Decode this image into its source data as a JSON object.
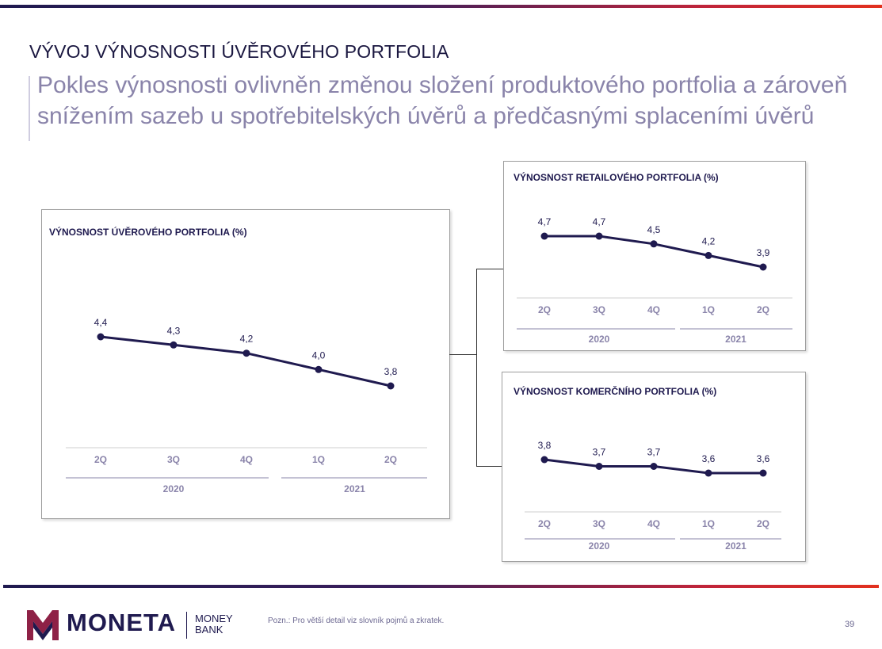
{
  "slide": {
    "title": "VÝVOJ VÝNOSNOSTI ÚVĚROVÉHO PORTFOLIA",
    "subtitle": "Pokles výnosnosti ovlivněn změnou složení produktového portfolia a zároveň  snížením sazeb u spotřebitelských úvěrů a předčasnými splaceními úvěrů",
    "note": "Pozn.: Pro větší detail viz slovník pojmů a zkratek.",
    "page_number": "39"
  },
  "brand": {
    "name": "MONETA",
    "sub_line1": "MONEY",
    "sub_line2": "BANK",
    "colors": {
      "navy": "#1f1a4f",
      "red": "#e2301e",
      "purple": "#8a84aa"
    }
  },
  "chart_data": [
    {
      "id": "total",
      "type": "line",
      "title": "VÝNOSNOST ÚVĚROVÉHO PORTFOLIA (%)",
      "categories": [
        "2Q",
        "3Q",
        "4Q",
        "1Q",
        "2Q"
      ],
      "groups": [
        {
          "label": "2020",
          "span": [
            0,
            2
          ]
        },
        {
          "label": "2021",
          "span": [
            3,
            4
          ]
        }
      ],
      "series": [
        {
          "values": [
            4.4,
            4.3,
            4.2,
            4.0,
            3.8
          ]
        }
      ],
      "data_labels": [
        "4,4",
        "4,3",
        "4,2",
        "4,0",
        "3,8"
      ],
      "ylim": [
        2.5,
        5.0
      ],
      "grid": false,
      "color": "#1f1a4f"
    },
    {
      "id": "retail",
      "type": "line",
      "title": "VÝNOSNOST RETAILOVÉHO PORTFOLIA (%)",
      "categories": [
        "2Q",
        "3Q",
        "4Q",
        "1Q",
        "2Q"
      ],
      "groups": [
        {
          "label": "2020",
          "span": [
            0,
            2
          ]
        },
        {
          "label": "2021",
          "span": [
            3,
            4
          ]
        }
      ],
      "series": [
        {
          "values": [
            4.7,
            4.7,
            4.5,
            4.2,
            3.9
          ]
        }
      ],
      "data_labels": [
        "4,7",
        "4,7",
        "4,5",
        "4,2",
        "3,9"
      ],
      "ylim": [
        3.6,
        4.8
      ],
      "grid": false,
      "color": "#1f1a4f"
    },
    {
      "id": "commercial",
      "type": "line",
      "title": "VÝNOSNOST KOMERČNÍHO PORTFOLIA (%)",
      "categories": [
        "2Q",
        "3Q",
        "4Q",
        "1Q",
        "2Q"
      ],
      "groups": [
        {
          "label": "2020",
          "span": [
            0,
            2
          ]
        },
        {
          "label": "2021",
          "span": [
            3,
            4
          ]
        }
      ],
      "series": [
        {
          "values": [
            3.8,
            3.7,
            3.7,
            3.6,
            3.6
          ]
        }
      ],
      "data_labels": [
        "3,8",
        "3,7",
        "3,7",
        "3,6",
        "3,6"
      ],
      "ylim": [
        3.4,
        3.9
      ],
      "grid": false,
      "color": "#1f1a4f"
    }
  ]
}
